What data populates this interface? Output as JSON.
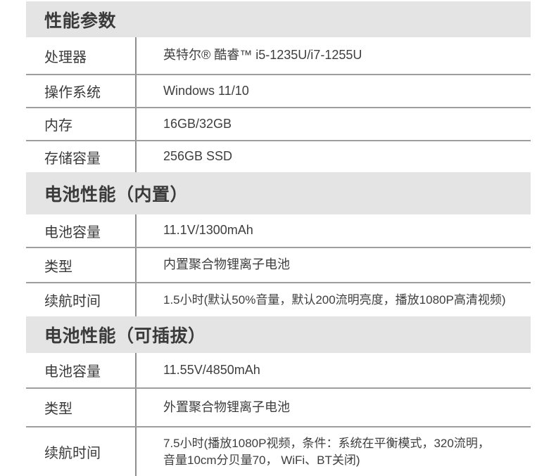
{
  "colors": {
    "section_band_bg": "#e4e4e4",
    "text": "#3c3c3c",
    "column_divider": "#8f8f8f",
    "row_separator": "#9e9e9e"
  },
  "sections": [
    {
      "title": "性能参数",
      "rows": [
        {
          "label": "处理器",
          "value": "英特尔® 酷睿™ i5-1235U/i7-1255U"
        },
        {
          "label": "操作系统",
          "value": "Windows 11/10"
        },
        {
          "label": "内存",
          "value": "16GB/32GB"
        },
        {
          "label": "存储容量",
          "value": "256GB SSD"
        }
      ]
    },
    {
      "title": "电池性能（内置）",
      "rows": [
        {
          "label": "电池容量",
          "value": "11.1V/1300mAh"
        },
        {
          "label": "类型",
          "value": "内置聚合物锂离子电池"
        },
        {
          "label": "续航时间",
          "value": "1.5小时(默认50%音量，默认200流明亮度，播放1080P高清视频)"
        }
      ]
    },
    {
      "title": "电池性能（可插拔）",
      "rows": [
        {
          "label": "电池容量",
          "value": "11.55V/4850mAh"
        },
        {
          "label": "类型",
          "value": "外置聚合物锂离子电池"
        },
        {
          "label": "续航时间",
          "value_line1": "7.5小时(播放1080P视频，条件：系统在平衡模式，320流明，",
          "value_line2": "音量10cm分贝量70， WiFi、BT关闭)"
        }
      ]
    }
  ]
}
